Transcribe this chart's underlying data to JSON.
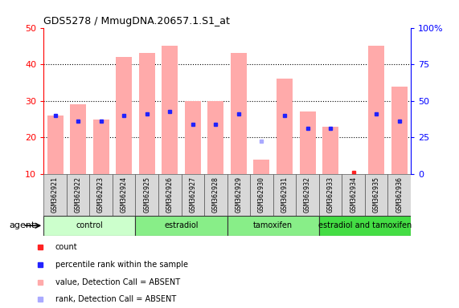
{
  "title": "GDS5278 / MmugDNA.20657.1.S1_at",
  "samples": [
    "GSM362921",
    "GSM362922",
    "GSM362923",
    "GSM362924",
    "GSM362925",
    "GSM362926",
    "GSM362927",
    "GSM362928",
    "GSM362929",
    "GSM362930",
    "GSM362931",
    "GSM362932",
    "GSM362933",
    "GSM362934",
    "GSM362935",
    "GSM362936"
  ],
  "count_bar_heights": [
    26,
    29,
    25,
    42,
    43,
    45,
    30,
    30,
    43,
    14,
    36,
    27,
    23,
    10,
    45,
    34
  ],
  "rank_values": [
    26,
    24.5,
    24.5,
    26,
    26.5,
    27,
    23.5,
    23.5,
    26.5,
    19,
    26,
    22.5,
    22.5,
    null,
    26.5,
    24.5
  ],
  "absent_flag": [
    true,
    true,
    true,
    true,
    true,
    true,
    true,
    true,
    true,
    true,
    true,
    true,
    true,
    true,
    true,
    true
  ],
  "absent_rank_flag": [
    false,
    false,
    false,
    false,
    false,
    false,
    false,
    false,
    false,
    true,
    false,
    false,
    false,
    false,
    false,
    false
  ],
  "has_count_dot": [
    false,
    false,
    false,
    false,
    false,
    false,
    false,
    false,
    false,
    false,
    false,
    false,
    false,
    true,
    false,
    false
  ],
  "groups": [
    {
      "label": "control",
      "start": 0,
      "end": 3,
      "color": "#ccffcc"
    },
    {
      "label": "estradiol",
      "start": 4,
      "end": 7,
      "color": "#88ee88"
    },
    {
      "label": "tamoxifen",
      "start": 8,
      "end": 11,
      "color": "#88ee88"
    },
    {
      "label": "estradiol and tamoxifen",
      "start": 12,
      "end": 15,
      "color": "#44dd44"
    }
  ],
  "ylim_left": [
    10,
    50
  ],
  "ylim_right": [
    0,
    100
  ],
  "yticks_left": [
    10,
    20,
    30,
    40,
    50
  ],
  "yticks_right": [
    0,
    25,
    50,
    75,
    100
  ],
  "bar_color_absent": "#ffaaaa",
  "bar_color_present": "#ff2222",
  "rank_color_absent": "#aaaaff",
  "rank_color_present": "#2222ff",
  "grid_color": "black",
  "grid_style": "dotted",
  "agent_label": "agent"
}
